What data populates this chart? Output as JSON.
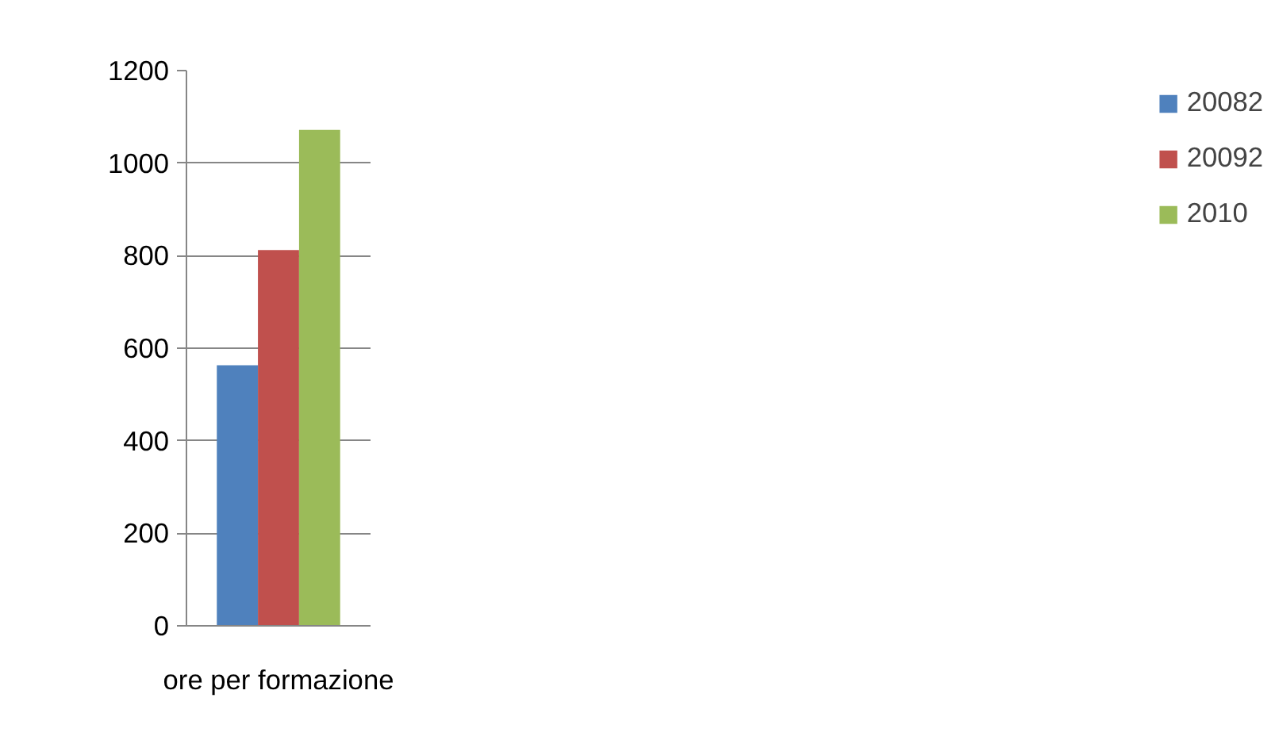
{
  "chart_data": {
    "type": "bar",
    "categories": [
      "ore per formazione"
    ],
    "series": [
      {
        "name": "20082",
        "color": "#4f81bd",
        "values": [
          563
        ]
      },
      {
        "name": "20092",
        "color": "#c0504d",
        "values": [
          812
        ]
      },
      {
        "name": "2010",
        "color": "#9bbb59",
        "values": [
          1072
        ]
      }
    ],
    "ylim": [
      0,
      1200
    ],
    "yticks": [
      0,
      200,
      400,
      600,
      800,
      1000,
      1200
    ],
    "grid": "y",
    "legend": "right"
  }
}
